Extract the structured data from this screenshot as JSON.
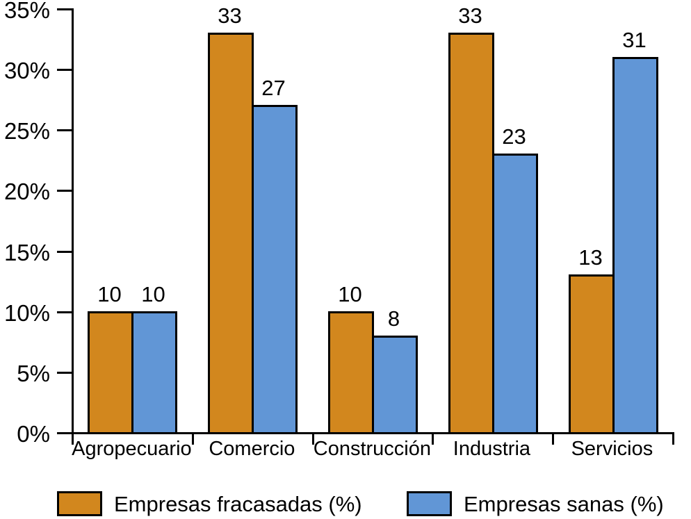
{
  "chart_data": {
    "type": "bar",
    "title": "",
    "xlabel": "",
    "ylabel": "",
    "categories": [
      "Agropecuario",
      "Comercio",
      "Construcción",
      "Industria",
      "Servicios"
    ],
    "series": [
      {
        "name": "Empresas fracasadas (%)",
        "color": "#D2871E",
        "values": [
          10,
          33,
          10,
          33,
          13
        ]
      },
      {
        "name": "Empresas sanas (%)",
        "color": "#6196D6",
        "values": [
          10,
          27,
          8,
          23,
          31
        ]
      }
    ],
    "y_axis": {
      "tick_labels": [
        "0%",
        "5%",
        "10%",
        "15%",
        "20%",
        "25%",
        "30%",
        "35%"
      ],
      "tick_values": [
        0,
        5,
        10,
        15,
        20,
        25,
        30,
        35
      ],
      "min": 0,
      "max": 35
    },
    "value_labels_shown": true,
    "grid": false,
    "legend_position": "bottom",
    "outline_color": "#000000",
    "background_color": "#FFFFFF"
  }
}
